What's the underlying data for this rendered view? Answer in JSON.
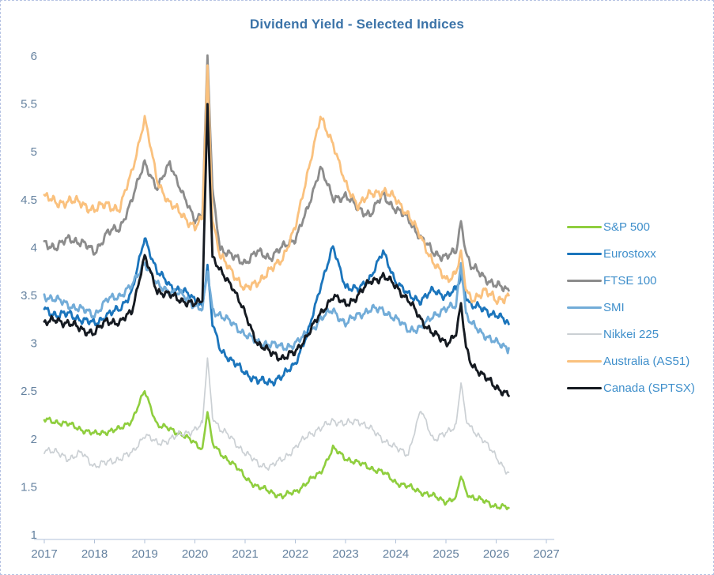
{
  "page": {
    "background": "#ffffff",
    "border_color": "#b7c4e4"
  },
  "chart_data": {
    "type": "line",
    "title": "Dividend Yield - Selected Indices",
    "title_color": "#3b73a8",
    "xlabel": "",
    "ylabel": "",
    "xlim": [
      2017,
      2027
    ],
    "ylim": [
      1,
      6
    ],
    "grid": false,
    "legend_position": "right",
    "legend_text_color": "#3f8fcb",
    "axis_color": "#b2c1d8",
    "tick_label_color": "#64819f",
    "x_ticks": [
      2017,
      2018,
      2019,
      2020,
      2021,
      2022,
      2023,
      2024,
      2025,
      2026,
      2027
    ],
    "y_ticks": [
      1,
      1.5,
      2,
      2.5,
      3,
      3.5,
      4,
      4.5,
      5,
      5.5,
      6
    ],
    "x": [
      2017,
      2017.25,
      2017.5,
      2017.75,
      2018,
      2018.25,
      2018.5,
      2018.75,
      2019,
      2019.25,
      2019.5,
      2019.75,
      2020,
      2020.15,
      2020.25,
      2020.35,
      2020.5,
      2020.75,
      2021,
      2021.25,
      2021.5,
      2021.75,
      2022,
      2022.25,
      2022.5,
      2022.75,
      2023,
      2023.25,
      2023.5,
      2023.75,
      2024,
      2024.25,
      2024.5,
      2024.75,
      2025,
      2025.2,
      2025.3,
      2025.4,
      2025.5,
      2025.75,
      2026,
      2026.25
    ],
    "series": [
      {
        "name": "S&P 500",
        "color": "#8fce3e",
        "width": 2.6,
        "wiggle": 0.035,
        "values": [
          2.2,
          2.18,
          2.15,
          2.1,
          2.05,
          2.08,
          2.1,
          2.2,
          2.5,
          2.15,
          2.1,
          2.05,
          1.95,
          1.9,
          2.3,
          1.95,
          1.85,
          1.75,
          1.6,
          1.5,
          1.45,
          1.4,
          1.45,
          1.55,
          1.65,
          1.9,
          1.8,
          1.75,
          1.7,
          1.65,
          1.55,
          1.5,
          1.45,
          1.4,
          1.35,
          1.38,
          1.62,
          1.45,
          1.4,
          1.35,
          1.3,
          1.28
        ]
      },
      {
        "name": "Eurostoxx",
        "color": "#1b75bc",
        "width": 2.8,
        "wiggle": 0.05,
        "values": [
          3.35,
          3.3,
          3.3,
          3.25,
          3.2,
          3.3,
          3.35,
          3.55,
          4.1,
          3.75,
          3.6,
          3.55,
          3.45,
          3.4,
          3.8,
          3.2,
          2.95,
          2.8,
          2.7,
          2.6,
          2.6,
          2.65,
          2.8,
          3.1,
          3.6,
          4.0,
          3.6,
          3.55,
          3.7,
          3.95,
          3.65,
          3.5,
          3.45,
          3.55,
          3.5,
          3.55,
          3.7,
          3.5,
          3.4,
          3.35,
          3.3,
          3.2
        ]
      },
      {
        "name": "FTSE 100",
        "color": "#8c8c8c",
        "width": 2.8,
        "wiggle": 0.055,
        "values": [
          4.05,
          4.0,
          4.1,
          4.05,
          3.95,
          4.15,
          4.2,
          4.5,
          4.9,
          4.6,
          4.9,
          4.55,
          4.3,
          4.35,
          6.0,
          4.6,
          4.0,
          3.9,
          3.85,
          3.95,
          3.9,
          4.0,
          4.1,
          4.4,
          4.85,
          4.5,
          4.55,
          4.4,
          4.35,
          4.55,
          4.4,
          4.3,
          4.1,
          3.95,
          3.9,
          3.95,
          4.28,
          3.95,
          3.8,
          3.7,
          3.6,
          3.55
        ]
      },
      {
        "name": "SMI",
        "color": "#72acd8",
        "width": 2.8,
        "wiggle": 0.05,
        "values": [
          3.5,
          3.45,
          3.4,
          3.35,
          3.3,
          3.45,
          3.5,
          3.6,
          3.85,
          3.6,
          3.55,
          3.5,
          3.4,
          3.35,
          3.75,
          3.35,
          3.3,
          3.2,
          3.1,
          3.0,
          3.0,
          2.95,
          3.0,
          3.1,
          3.25,
          3.35,
          3.2,
          3.3,
          3.35,
          3.35,
          3.25,
          3.15,
          3.15,
          3.3,
          3.35,
          3.4,
          3.85,
          3.3,
          3.2,
          3.1,
          3.0,
          2.95
        ]
      },
      {
        "name": "Nikkei 225",
        "color": "#cbd0d4",
        "width": 1.7,
        "wiggle": 0.045,
        "values": [
          1.9,
          1.85,
          1.8,
          1.85,
          1.72,
          1.75,
          1.8,
          1.85,
          2.05,
          1.95,
          2.0,
          2.05,
          2.1,
          2.15,
          2.85,
          2.25,
          2.1,
          2.0,
          1.85,
          1.75,
          1.7,
          1.8,
          1.9,
          2.05,
          2.1,
          2.2,
          2.15,
          2.2,
          2.1,
          2.0,
          1.9,
          1.85,
          2.3,
          2.0,
          2.05,
          2.15,
          2.6,
          2.2,
          2.1,
          2.0,
          1.8,
          1.65
        ]
      },
      {
        "name": "Australia (AS51)",
        "color": "#fac17e",
        "width": 2.8,
        "wiggle": 0.06,
        "values": [
          4.55,
          4.45,
          4.5,
          4.45,
          4.4,
          4.45,
          4.4,
          4.8,
          5.35,
          4.7,
          4.45,
          4.35,
          4.2,
          4.3,
          5.9,
          4.3,
          3.9,
          3.75,
          3.55,
          3.65,
          3.75,
          3.9,
          4.2,
          4.8,
          5.35,
          5.1,
          4.65,
          4.45,
          4.55,
          4.6,
          4.5,
          4.35,
          4.1,
          3.85,
          3.65,
          3.75,
          3.95,
          3.55,
          3.45,
          3.55,
          3.45,
          3.5
        ]
      },
      {
        "name": "Canada (SPTSX)",
        "color": "#151a21",
        "width": 2.9,
        "wiggle": 0.05,
        "values": [
          3.2,
          3.25,
          3.2,
          3.15,
          3.1,
          3.25,
          3.2,
          3.35,
          3.9,
          3.55,
          3.5,
          3.45,
          3.4,
          3.45,
          5.5,
          3.9,
          3.75,
          3.6,
          3.3,
          3.0,
          2.9,
          2.85,
          2.9,
          3.1,
          3.3,
          3.5,
          3.4,
          3.5,
          3.65,
          3.7,
          3.6,
          3.45,
          3.25,
          3.1,
          3.0,
          3.1,
          3.4,
          2.95,
          2.8,
          2.65,
          2.55,
          2.45
        ]
      }
    ]
  }
}
